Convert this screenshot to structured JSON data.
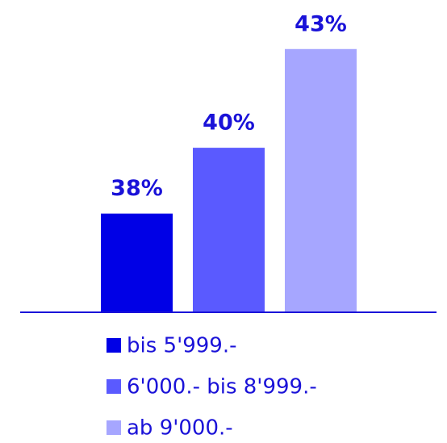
{
  "chart_data": {
    "type": "bar",
    "categories": [
      null
    ],
    "series": [
      {
        "name": "bis 5'999.-",
        "color": "#0000e6",
        "values": [
          38
        ],
        "value_labels": [
          "38%"
        ]
      },
      {
        "name": "6'000.- bis 8'999.-",
        "color": "#5a5aff",
        "values": [
          40
        ],
        "value_labels": [
          "40%"
        ]
      },
      {
        "name": "ab 9'000.-",
        "color": "#a6a6ff",
        "values": [
          43
        ],
        "value_labels": [
          "43%"
        ]
      }
    ],
    "ylim": [
      35,
      44
    ],
    "axis_color": "#1a12d8"
  }
}
